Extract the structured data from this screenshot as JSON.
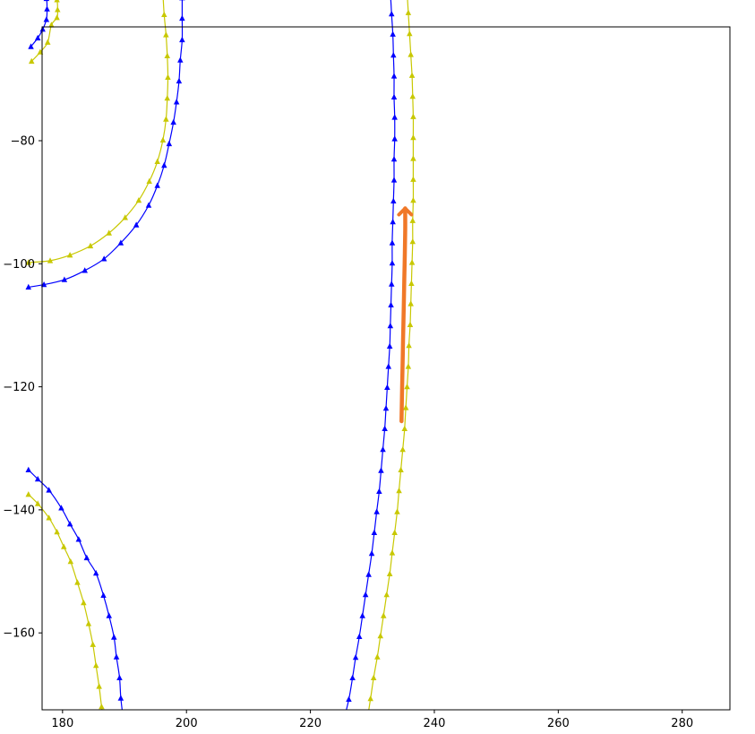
{
  "chart_data": {
    "type": "line",
    "title": "",
    "xlabel": "",
    "ylabel": "",
    "xlim": [
      176.7,
      287.7
    ],
    "ylim": [
      -172.5,
      -61.5
    ],
    "grid": false,
    "legend": "none",
    "x_ticks": [
      {
        "value": 180,
        "label": "180"
      },
      {
        "value": 200,
        "label": "200"
      },
      {
        "value": 220,
        "label": "220"
      },
      {
        "value": 240,
        "label": "240"
      },
      {
        "value": 260,
        "label": "260"
      },
      {
        "value": 280,
        "label": "280"
      }
    ],
    "y_ticks": [
      {
        "value": -80,
        "label": "−80"
      },
      {
        "value": -100,
        "label": "−100"
      },
      {
        "value": -120,
        "label": "−120"
      },
      {
        "value": -140,
        "label": "−140"
      },
      {
        "value": -160,
        "label": "−160"
      }
    ],
    "series": [
      {
        "color": "#0000ff",
        "marker": "triangle-up",
        "points": [
          [
            174.9,
            -64.7
          ],
          [
            176.0,
            -63.3
          ],
          [
            176.8,
            -61.9
          ],
          [
            177.4,
            -60.3
          ],
          [
            177.5,
            -58.6
          ],
          [
            177.4,
            -56.9
          ],
          [
            176.8,
            -55.3
          ],
          [
            176.0,
            -53.7
          ],
          [
            174.9,
            -52.3
          ]
        ]
      },
      {
        "color": "#c8c800",
        "marker": "triangle-up",
        "points": [
          [
            175.0,
            -67.1
          ],
          [
            176.4,
            -65.6
          ],
          [
            177.6,
            -64.0
          ],
          [
            178.2,
            -61.2
          ],
          [
            179.1,
            -60.0
          ],
          [
            179.2,
            -58.7
          ],
          [
            179.1,
            -57.1
          ],
          [
            178.4,
            -54.9
          ],
          [
            177.6,
            -53.0
          ]
        ]
      },
      {
        "color": "#0000ff",
        "marker": "triangle-up",
        "points": [
          [
            174.5,
            -103.8
          ],
          [
            177.0,
            -103.4
          ],
          [
            180.3,
            -102.6
          ],
          [
            183.6,
            -101.1
          ],
          [
            186.7,
            -99.2
          ],
          [
            189.4,
            -96.6
          ],
          [
            191.9,
            -93.7
          ],
          [
            193.9,
            -90.5
          ],
          [
            195.3,
            -87.3
          ],
          [
            196.4,
            -84.0
          ],
          [
            197.2,
            -80.5
          ],
          [
            197.9,
            -77.0
          ],
          [
            198.4,
            -73.7
          ],
          [
            198.8,
            -70.3
          ],
          [
            199.0,
            -66.9
          ],
          [
            199.3,
            -63.6
          ],
          [
            199.3,
            -60.1
          ],
          [
            199.3,
            -56.8
          ],
          [
            199.3,
            -53.4
          ]
        ]
      },
      {
        "color": "#c8c800",
        "marker": "triangle-up",
        "points": [
          [
            174.5,
            -99.8
          ],
          [
            178.0,
            -99.5
          ],
          [
            181.2,
            -98.6
          ],
          [
            184.5,
            -97.1
          ],
          [
            187.5,
            -95.0
          ],
          [
            190.1,
            -92.5
          ],
          [
            192.3,
            -89.7
          ],
          [
            194.0,
            -86.6
          ],
          [
            195.3,
            -83.4
          ],
          [
            196.2,
            -79.9
          ],
          [
            196.7,
            -76.5
          ],
          [
            196.9,
            -73.1
          ],
          [
            197.0,
            -69.7
          ],
          [
            196.9,
            -66.2
          ],
          [
            196.7,
            -62.8
          ],
          [
            196.4,
            -59.5
          ],
          [
            196.2,
            -56.0
          ],
          [
            196.1,
            -52.6
          ]
        ]
      },
      {
        "color": "#0000ff",
        "marker": "triangle-up",
        "points": [
          [
            232.6,
            -52.6
          ],
          [
            232.9,
            -55.9
          ],
          [
            233.1,
            -59.4
          ],
          [
            233.3,
            -62.7
          ],
          [
            233.4,
            -66.1
          ],
          [
            233.5,
            -69.5
          ],
          [
            233.5,
            -72.9
          ],
          [
            233.6,
            -76.2
          ],
          [
            233.6,
            -79.7
          ],
          [
            233.5,
            -83.0
          ],
          [
            233.5,
            -86.4
          ],
          [
            233.4,
            -89.8
          ],
          [
            233.3,
            -93.2
          ],
          [
            233.2,
            -96.6
          ],
          [
            233.2,
            -99.9
          ],
          [
            233.1,
            -103.3
          ],
          [
            233.0,
            -106.7
          ],
          [
            232.9,
            -110.1
          ],
          [
            232.8,
            -113.4
          ],
          [
            232.6,
            -116.7
          ],
          [
            232.4,
            -120.1
          ],
          [
            232.2,
            -123.5
          ],
          [
            232.0,
            -126.8
          ],
          [
            231.7,
            -130.2
          ],
          [
            231.4,
            -133.6
          ],
          [
            231.1,
            -137.0
          ],
          [
            230.7,
            -140.3
          ],
          [
            230.3,
            -143.7
          ],
          [
            229.9,
            -147.1
          ],
          [
            229.4,
            -150.5
          ],
          [
            228.9,
            -153.8
          ],
          [
            228.4,
            -157.2
          ],
          [
            227.9,
            -160.6
          ],
          [
            227.3,
            -164.0
          ],
          [
            226.8,
            -167.3
          ],
          [
            226.2,
            -170.8
          ],
          [
            225.4,
            -174.1
          ]
        ]
      },
      {
        "color": "#c8c800",
        "marker": "triangle-up",
        "points": [
          [
            235.4,
            -52.5
          ],
          [
            235.6,
            -55.8
          ],
          [
            235.8,
            -59.2
          ],
          [
            236.0,
            -62.6
          ],
          [
            236.2,
            -66.0
          ],
          [
            236.4,
            -69.4
          ],
          [
            236.5,
            -72.8
          ],
          [
            236.6,
            -76.1
          ],
          [
            236.6,
            -79.5
          ],
          [
            236.6,
            -82.9
          ],
          [
            236.6,
            -86.3
          ],
          [
            236.6,
            -89.7
          ],
          [
            236.5,
            -93.0
          ],
          [
            236.5,
            -96.4
          ],
          [
            236.4,
            -99.8
          ],
          [
            236.3,
            -103.2
          ],
          [
            236.2,
            -106.5
          ],
          [
            236.1,
            -109.9
          ],
          [
            235.9,
            -113.3
          ],
          [
            235.8,
            -116.7
          ],
          [
            235.6,
            -120.0
          ],
          [
            235.4,
            -123.4
          ],
          [
            235.2,
            -126.8
          ],
          [
            234.9,
            -130.2
          ],
          [
            234.6,
            -133.5
          ],
          [
            234.3,
            -136.9
          ],
          [
            234.0,
            -140.3
          ],
          [
            233.6,
            -143.7
          ],
          [
            233.2,
            -147.0
          ],
          [
            232.8,
            -150.4
          ],
          [
            232.3,
            -153.8
          ],
          [
            231.8,
            -157.2
          ],
          [
            231.3,
            -160.5
          ],
          [
            230.8,
            -163.9
          ],
          [
            230.2,
            -167.3
          ],
          [
            229.7,
            -170.7
          ],
          [
            229.2,
            -174.0
          ]
        ]
      },
      {
        "color": "#0000ff",
        "marker": "triangle-up",
        "points": [
          [
            174.5,
            -133.5
          ],
          [
            176.0,
            -135.0
          ],
          [
            177.8,
            -136.8
          ],
          [
            179.8,
            -139.7
          ],
          [
            181.2,
            -142.3
          ],
          [
            182.6,
            -144.8
          ],
          [
            183.9,
            -147.8
          ],
          [
            185.4,
            -150.3
          ],
          [
            186.6,
            -153.9
          ],
          [
            187.5,
            -157.2
          ],
          [
            188.3,
            -160.7
          ],
          [
            188.7,
            -163.9
          ],
          [
            189.2,
            -167.3
          ],
          [
            189.4,
            -170.6
          ],
          [
            189.8,
            -174.0
          ]
        ]
      },
      {
        "color": "#c8c800",
        "marker": "triangle-up",
        "points": [
          [
            174.5,
            -137.5
          ],
          [
            176.0,
            -139.0
          ],
          [
            177.8,
            -141.3
          ],
          [
            179.1,
            -143.6
          ],
          [
            180.2,
            -146.0
          ],
          [
            181.3,
            -148.4
          ],
          [
            182.4,
            -151.8
          ],
          [
            183.4,
            -155.1
          ],
          [
            184.2,
            -158.5
          ],
          [
            184.9,
            -161.9
          ],
          [
            185.4,
            -165.3
          ],
          [
            185.9,
            -168.7
          ],
          [
            186.3,
            -172.0
          ],
          [
            186.7,
            -175.4
          ]
        ]
      },
      {
        "color": "#f07828",
        "marker": "none",
        "arrow": true,
        "points": [
          [
            234.7,
            -125.6
          ],
          [
            234.8,
            -120.0
          ],
          [
            234.9,
            -115.0
          ],
          [
            235.0,
            -110.0
          ],
          [
            235.1,
            -105.0
          ],
          [
            235.2,
            -100.0
          ],
          [
            235.3,
            -95.0
          ],
          [
            235.3,
            -91.0
          ]
        ]
      }
    ]
  }
}
